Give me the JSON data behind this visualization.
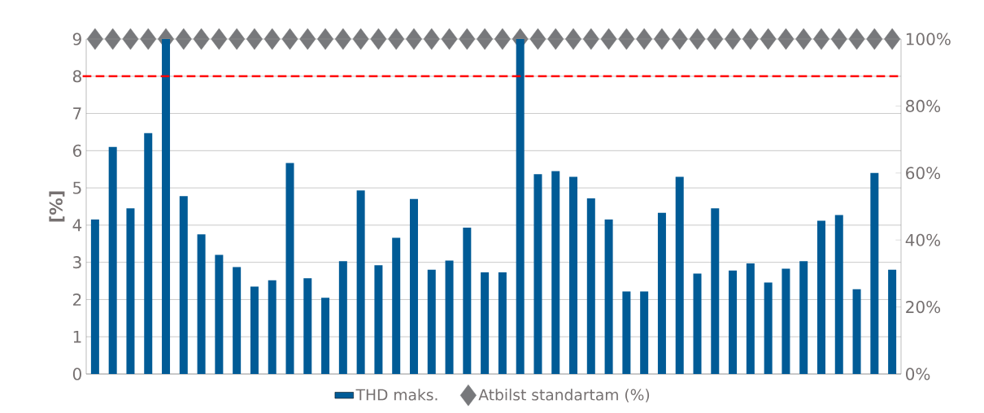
{
  "chart_data": {
    "type": "bar",
    "ylabel": "[%]",
    "categories": [
      null,
      null,
      null,
      null,
      null,
      null,
      null,
      null,
      null,
      null,
      null,
      null,
      null,
      null,
      null,
      null,
      null,
      null,
      null,
      null,
      null,
      null,
      null,
      null,
      null,
      null,
      null,
      null,
      null,
      null,
      null,
      null,
      null,
      null,
      null,
      null,
      null,
      null,
      null,
      null,
      null,
      null,
      null,
      null,
      null,
      null
    ],
    "series": [
      {
        "name": "THD maks.",
        "color": "#005b96",
        "values": [
          4.15,
          6.1,
          4.45,
          6.47,
          9,
          4.78,
          3.75,
          3.2,
          2.87,
          2.35,
          2.52,
          5.67,
          2.57,
          2.05,
          3.03,
          4.93,
          2.92,
          3.66,
          4.7,
          2.8,
          3.05,
          3.93,
          2.73,
          2.73,
          9,
          5.37,
          5.45,
          5.3,
          4.72,
          4.15,
          2.22,
          2.22,
          4.33,
          5.3,
          2.7,
          4.45,
          2.78,
          2.97,
          2.46,
          2.83,
          3.03,
          4.12,
          4.27,
          2.28,
          5.4,
          2.8
        ]
      },
      {
        "name": "Atbilst standartam (%)",
        "type": "scatter",
        "axis": "y2",
        "marker": "diamond",
        "color": "#77787b",
        "values": [
          100,
          100,
          100,
          100,
          100,
          100,
          100,
          100,
          100,
          100,
          100,
          100,
          100,
          100,
          100,
          100,
          100,
          100,
          100,
          100,
          100,
          100,
          100,
          100,
          100,
          100,
          100,
          100,
          100,
          100,
          100,
          100,
          100,
          100,
          100,
          100,
          100,
          100,
          100,
          100,
          100,
          100,
          100,
          100,
          100,
          100
        ]
      }
    ],
    "ylim": [
      0,
      9
    ],
    "yticks": [
      0,
      1,
      2,
      3,
      4,
      5,
      6,
      7,
      8,
      9
    ],
    "y2lim": [
      0,
      100
    ],
    "y2ticks": [
      {
        "value": 0,
        "label": "0%"
      },
      {
        "value": 20,
        "label": "20%"
      },
      {
        "value": 40,
        "label": "40%"
      },
      {
        "value": 60,
        "label": "60%"
      },
      {
        "value": 80,
        "label": "80%"
      },
      {
        "value": 100,
        "label": "100%"
      }
    ],
    "ref_lines": [
      {
        "axis": "y",
        "value": 8,
        "color": "#ff0000",
        "line_style": "dashed"
      }
    ],
    "grid": "y",
    "legend": "bottom"
  }
}
